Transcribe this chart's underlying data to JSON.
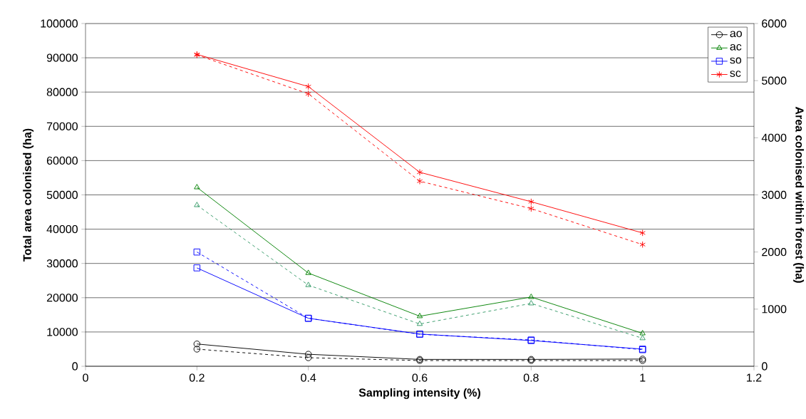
{
  "chart_data": {
    "type": "line",
    "xlabel": "Sampling intensity (%)",
    "ylabel": "Total area colonised (ha)",
    "y2label": "Area colonised within forest (ha)",
    "x": [
      0.2,
      0.4,
      0.6,
      0.8,
      1.0
    ],
    "xlim": [
      0,
      1.2
    ],
    "xticks": [
      0,
      0.2,
      0.4,
      0.6,
      0.8,
      1,
      1.2
    ],
    "ylim": [
      0,
      100000
    ],
    "yticks": [
      0,
      10000,
      20000,
      30000,
      40000,
      50000,
      60000,
      70000,
      80000,
      90000,
      100000
    ],
    "y2lim": [
      0,
      6000
    ],
    "y2ticks": [
      0,
      1000,
      2000,
      3000,
      4000,
      5000,
      6000
    ],
    "grid": "y",
    "legend": "top right",
    "series": [
      {
        "name": "ao",
        "color": "#000000",
        "marker": "circle",
        "line_style": "solid",
        "values": [
          6500,
          3500,
          2000,
          2000,
          2100
        ]
      },
      {
        "name": "ac",
        "color": "#008000",
        "marker": "triangle",
        "line_style": "solid",
        "values": [
          52200,
          27200,
          14600,
          20200,
          9600
        ]
      },
      {
        "name": "so",
        "color": "#0000ff",
        "marker": "square",
        "line_style": "solid",
        "values": [
          28700,
          14000,
          9400,
          7500,
          5000
        ]
      },
      {
        "name": "sc",
        "color": "#ff0000",
        "marker": "cross",
        "line_style": "solid",
        "values": [
          91000,
          81600,
          56600,
          48000,
          38900
        ]
      },
      {
        "color": "#000000",
        "marker": "circle",
        "line_style": "dashed",
        "axis": "y2",
        "values": [
          300,
          150,
          100,
          100,
          100
        ]
      },
      {
        "color": "#339966",
        "marker": "triangle",
        "line_style": "dashed",
        "axis": "y2",
        "values": [
          2820,
          1420,
          740,
          1100,
          490
        ]
      },
      {
        "color": "#0000ff",
        "marker": "square",
        "line_style": "dashed",
        "axis": "y2",
        "values": [
          2000,
          840,
          560,
          460,
          290
        ]
      },
      {
        "color": "#ff0000",
        "marker": "cross",
        "line_style": "dashed",
        "axis": "y2",
        "values": [
          5450,
          4770,
          3240,
          2760,
          2130
        ]
      }
    ]
  }
}
